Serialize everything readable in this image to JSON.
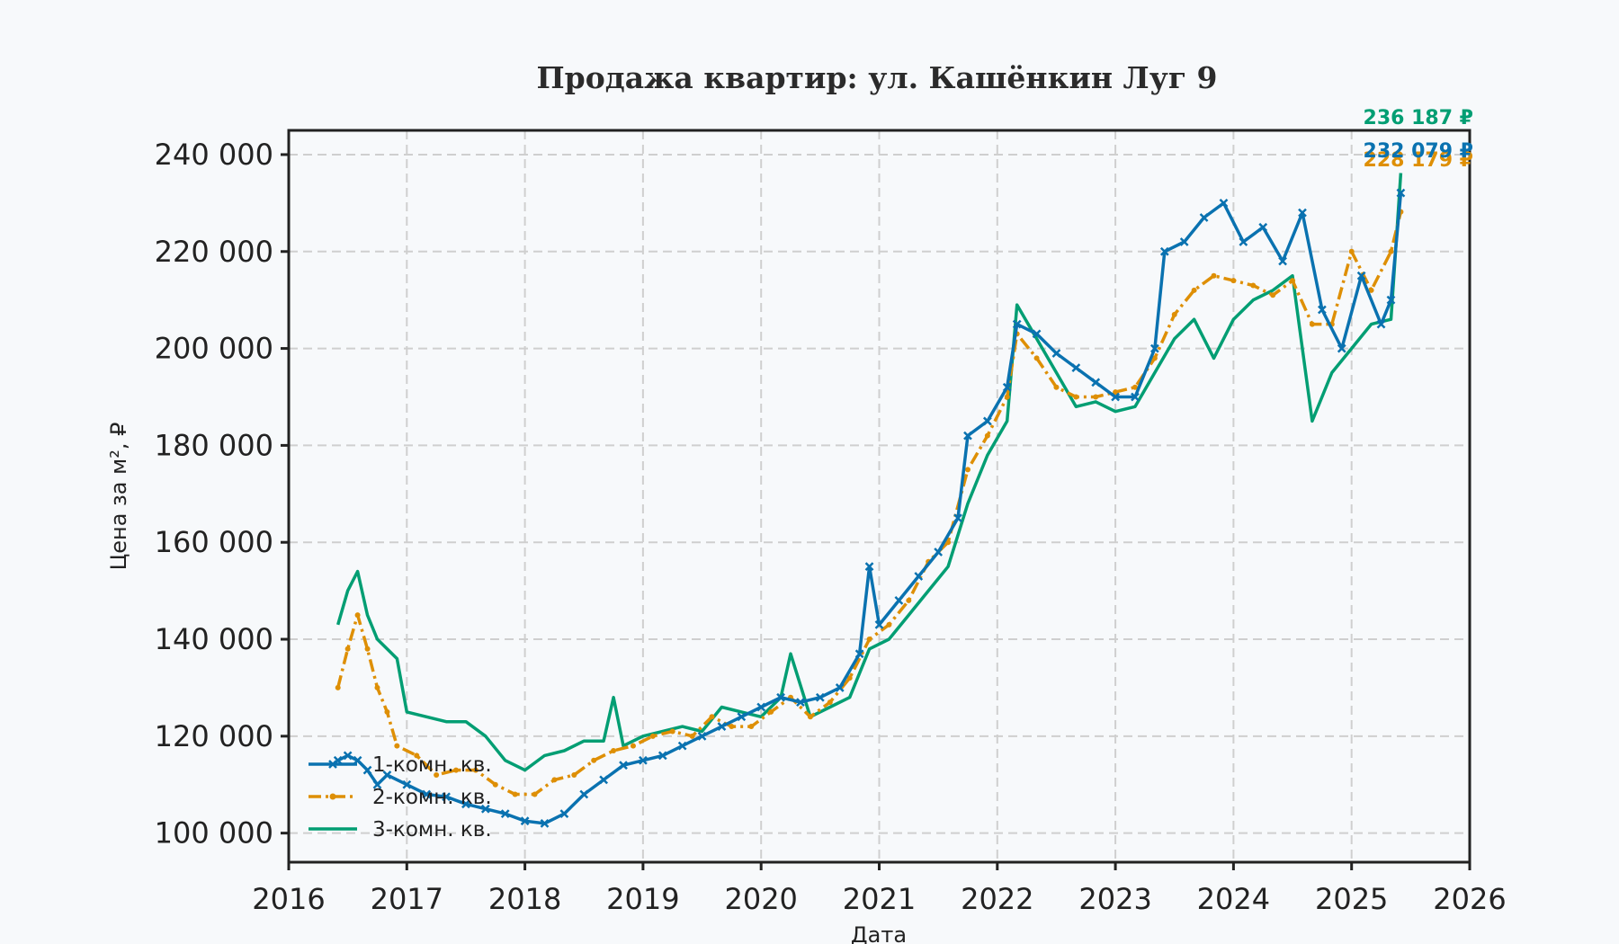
{
  "chart_data": {
    "type": "line",
    "title": "Продажа квартир: ул. Кашёнкин Луг 9",
    "xlabel": "Дата",
    "ylabel": "Цена за м², ₽",
    "xlim": [
      2016,
      2026
    ],
    "ylim": [
      94000,
      245000
    ],
    "x_ticks": [
      "2016",
      "2017",
      "2018",
      "2019",
      "2020",
      "2021",
      "2022",
      "2023",
      "2024",
      "2025",
      "2026"
    ],
    "y_ticks": [
      "100 000",
      "120 000",
      "140 000",
      "160 000",
      "180 000",
      "200 000",
      "220 000",
      "240 000"
    ],
    "grid": true,
    "legend_position": "lower-left",
    "series": [
      {
        "name": "1-комн. кв.",
        "color": "#1f77b4",
        "color_hex": "#0a72b0",
        "marker": "x",
        "end_label": "232 079 ₽",
        "points": [
          [
            "2016-06",
            115000
          ],
          [
            "2016-07",
            116000
          ],
          [
            "2016-08",
            115000
          ],
          [
            "2016-09",
            113000
          ],
          [
            "2016-10",
            110000
          ],
          [
            "2016-11",
            112000
          ],
          [
            "2017-01",
            110000
          ],
          [
            "2017-03",
            108000
          ],
          [
            "2017-05",
            107500
          ],
          [
            "2017-07",
            106000
          ],
          [
            "2017-09",
            105000
          ],
          [
            "2017-11",
            104000
          ],
          [
            "2018-01",
            102500
          ],
          [
            "2018-03",
            102000
          ],
          [
            "2018-05",
            104000
          ],
          [
            "2018-07",
            108000
          ],
          [
            "2018-09",
            111000
          ],
          [
            "2018-11",
            114000
          ],
          [
            "2019-01",
            115000
          ],
          [
            "2019-03",
            116000
          ],
          [
            "2019-05",
            118000
          ],
          [
            "2019-07",
            120000
          ],
          [
            "2019-09",
            122000
          ],
          [
            "2019-11",
            124000
          ],
          [
            "2020-01",
            126000
          ],
          [
            "2020-03",
            128000
          ],
          [
            "2020-05",
            127000
          ],
          [
            "2020-07",
            128000
          ],
          [
            "2020-09",
            130000
          ],
          [
            "2020-11",
            137000
          ],
          [
            "2020-12",
            155000
          ],
          [
            "2021-01",
            143000
          ],
          [
            "2021-03",
            148000
          ],
          [
            "2021-05",
            153000
          ],
          [
            "2021-07",
            158000
          ],
          [
            "2021-09",
            165000
          ],
          [
            "2021-10",
            182000
          ],
          [
            "2021-12",
            185000
          ],
          [
            "2022-02",
            192000
          ],
          [
            "2022-03",
            205000
          ],
          [
            "2022-05",
            203000
          ],
          [
            "2022-07",
            199000
          ],
          [
            "2022-09",
            196000
          ],
          [
            "2022-11",
            193000
          ],
          [
            "2023-01",
            190000
          ],
          [
            "2023-03",
            190000
          ],
          [
            "2023-05",
            200000
          ],
          [
            "2023-06",
            220000
          ],
          [
            "2023-08",
            222000
          ],
          [
            "2023-10",
            227000
          ],
          [
            "2023-12",
            230000
          ],
          [
            "2024-02",
            222000
          ],
          [
            "2024-04",
            225000
          ],
          [
            "2024-06",
            218000
          ],
          [
            "2024-08",
            228000
          ],
          [
            "2024-10",
            208000
          ],
          [
            "2024-12",
            200000
          ],
          [
            "2025-02",
            215000
          ],
          [
            "2025-04",
            205000
          ],
          [
            "2025-05",
            210000
          ],
          [
            "2025-06",
            232079
          ]
        ]
      },
      {
        "name": "2-комн. кв.",
        "color": "#e69f00",
        "color_hex": "#de8f05",
        "marker": "dash-dot",
        "end_label": "228 179 ₽",
        "points": [
          [
            "2016-06",
            130000
          ],
          [
            "2016-07",
            138000
          ],
          [
            "2016-08",
            145000
          ],
          [
            "2016-09",
            138000
          ],
          [
            "2016-10",
            130000
          ],
          [
            "2016-11",
            125000
          ],
          [
            "2016-12",
            118000
          ],
          [
            "2017-02",
            116000
          ],
          [
            "2017-04",
            112000
          ],
          [
            "2017-06",
            113000
          ],
          [
            "2017-08",
            113000
          ],
          [
            "2017-10",
            110000
          ],
          [
            "2017-12",
            108000
          ],
          [
            "2018-02",
            108000
          ],
          [
            "2018-04",
            111000
          ],
          [
            "2018-06",
            112000
          ],
          [
            "2018-08",
            115000
          ],
          [
            "2018-10",
            117000
          ],
          [
            "2018-12",
            118000
          ],
          [
            "2019-02",
            120000
          ],
          [
            "2019-04",
            121000
          ],
          [
            "2019-06",
            120000
          ],
          [
            "2019-08",
            124000
          ],
          [
            "2019-10",
            122000
          ],
          [
            "2019-12",
            122000
          ],
          [
            "2020-02",
            125000
          ],
          [
            "2020-04",
            128000
          ],
          [
            "2020-06",
            124000
          ],
          [
            "2020-08",
            127000
          ],
          [
            "2020-10",
            132000
          ],
          [
            "2020-12",
            140000
          ],
          [
            "2021-02",
            143000
          ],
          [
            "2021-04",
            148000
          ],
          [
            "2021-06",
            156000
          ],
          [
            "2021-08",
            160000
          ],
          [
            "2021-10",
            175000
          ],
          [
            "2021-12",
            182000
          ],
          [
            "2022-02",
            190000
          ],
          [
            "2022-03",
            203000
          ],
          [
            "2022-05",
            198000
          ],
          [
            "2022-07",
            192000
          ],
          [
            "2022-09",
            190000
          ],
          [
            "2022-11",
            190000
          ],
          [
            "2023-01",
            191000
          ],
          [
            "2023-03",
            192000
          ],
          [
            "2023-05",
            198000
          ],
          [
            "2023-07",
            207000
          ],
          [
            "2023-09",
            212000
          ],
          [
            "2023-11",
            215000
          ],
          [
            "2024-01",
            214000
          ],
          [
            "2024-03",
            213000
          ],
          [
            "2024-05",
            211000
          ],
          [
            "2024-07",
            214000
          ],
          [
            "2024-09",
            205000
          ],
          [
            "2024-11",
            205000
          ],
          [
            "2025-01",
            220000
          ],
          [
            "2025-03",
            212000
          ],
          [
            "2025-05",
            220000
          ],
          [
            "2025-06",
            228179
          ]
        ]
      },
      {
        "name": "3-комн. кв.",
        "color": "#029e73",
        "color_hex": "#029e73",
        "marker": "none",
        "end_label": "236 187 ₽",
        "points": [
          [
            "2016-06",
            143000
          ],
          [
            "2016-07",
            150000
          ],
          [
            "2016-08",
            154000
          ],
          [
            "2016-09",
            145000
          ],
          [
            "2016-10",
            140000
          ],
          [
            "2016-11",
            138000
          ],
          [
            "2016-12",
            136000
          ],
          [
            "2017-01",
            125000
          ],
          [
            "2017-03",
            124000
          ],
          [
            "2017-05",
            123000
          ],
          [
            "2017-07",
            123000
          ],
          [
            "2017-09",
            120000
          ],
          [
            "2017-11",
            115000
          ],
          [
            "2018-01",
            113000
          ],
          [
            "2018-03",
            116000
          ],
          [
            "2018-05",
            117000
          ],
          [
            "2018-07",
            119000
          ],
          [
            "2018-09",
            119000
          ],
          [
            "2018-10",
            128000
          ],
          [
            "2018-11",
            118000
          ],
          [
            "2019-01",
            120000
          ],
          [
            "2019-03",
            121000
          ],
          [
            "2019-05",
            122000
          ],
          [
            "2019-07",
            121000
          ],
          [
            "2019-09",
            126000
          ],
          [
            "2019-11",
            125000
          ],
          [
            "2020-01",
            124000
          ],
          [
            "2020-03",
            128000
          ],
          [
            "2020-04",
            137000
          ],
          [
            "2020-06",
            124000
          ],
          [
            "2020-08",
            126000
          ],
          [
            "2020-10",
            128000
          ],
          [
            "2020-12",
            138000
          ],
          [
            "2021-02",
            140000
          ],
          [
            "2021-04",
            145000
          ],
          [
            "2021-06",
            150000
          ],
          [
            "2021-08",
            155000
          ],
          [
            "2021-10",
            168000
          ],
          [
            "2021-12",
            178000
          ],
          [
            "2022-02",
            185000
          ],
          [
            "2022-03",
            209000
          ],
          [
            "2022-05",
            202000
          ],
          [
            "2022-07",
            195000
          ],
          [
            "2022-09",
            188000
          ],
          [
            "2022-11",
            189000
          ],
          [
            "2023-01",
            187000
          ],
          [
            "2023-03",
            188000
          ],
          [
            "2023-05",
            195000
          ],
          [
            "2023-07",
            202000
          ],
          [
            "2023-09",
            206000
          ],
          [
            "2023-11",
            198000
          ],
          [
            "2024-01",
            206000
          ],
          [
            "2024-03",
            210000
          ],
          [
            "2024-05",
            212000
          ],
          [
            "2024-07",
            215000
          ],
          [
            "2024-09",
            185000
          ],
          [
            "2024-11",
            195000
          ],
          [
            "2025-01",
            200000
          ],
          [
            "2025-03",
            205000
          ],
          [
            "2025-05",
            206000
          ],
          [
            "2025-06",
            236187
          ]
        ]
      }
    ]
  }
}
